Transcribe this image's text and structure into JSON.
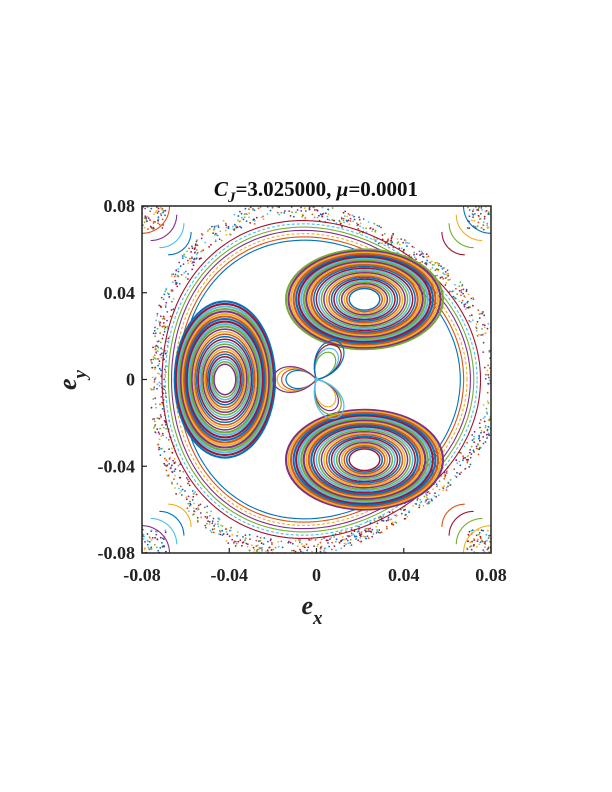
{
  "chart_data": {
    "type": "scatter",
    "title": {
      "var": "C",
      "sub": "J",
      "value": "=3.025000, ",
      "param": "μ",
      "param_value": "=0.0001"
    },
    "xlabel": {
      "main": "e",
      "sub": "x"
    },
    "ylabel": {
      "main": "e",
      "sub": "y"
    },
    "xlim": [
      -0.08,
      0.08
    ],
    "ylim": [
      -0.08,
      0.08
    ],
    "xticks": [
      -0.08,
      -0.04,
      0,
      0.04,
      0.08
    ],
    "yticks": [
      -0.08,
      -0.04,
      0,
      0.04,
      0.08
    ],
    "xtick_labels": [
      "-0.08",
      "-0.04",
      "0",
      "0.04",
      "0.08"
    ],
    "ytick_labels": [
      "-0.08",
      "-0.04",
      "0",
      "0.04",
      "0.08"
    ],
    "grid": false,
    "legend": "none",
    "colors": [
      "#0072BD",
      "#D95319",
      "#EDB120",
      "#7E2F8E",
      "#77AC30",
      "#4DBEEE",
      "#A2142F"
    ],
    "islands": [
      {
        "name": "island-upper-right",
        "center": [
          0.022,
          0.037
        ],
        "rx_range": [
          0.007,
          0.036
        ],
        "ry_range": [
          0.005,
          0.023
        ],
        "angle_deg": 0
      },
      {
        "name": "island-left",
        "center": [
          -0.042,
          0.0
        ],
        "rx_range": [
          0.005,
          0.023
        ],
        "ry_range": [
          0.007,
          0.036
        ],
        "angle_deg": 0
      },
      {
        "name": "island-lower-right",
        "center": [
          0.022,
          -0.037
        ],
        "rx_range": [
          0.007,
          0.036
        ],
        "ry_range": [
          0.005,
          0.023
        ],
        "angle_deg": 0
      }
    ],
    "outer_curves": {
      "radius_range": [
        0.064,
        0.073
      ]
    },
    "chaotic_ring": {
      "radius_range": [
        0.073,
        0.081
      ]
    },
    "center_point": [
      0.0,
      0.0
    ]
  }
}
